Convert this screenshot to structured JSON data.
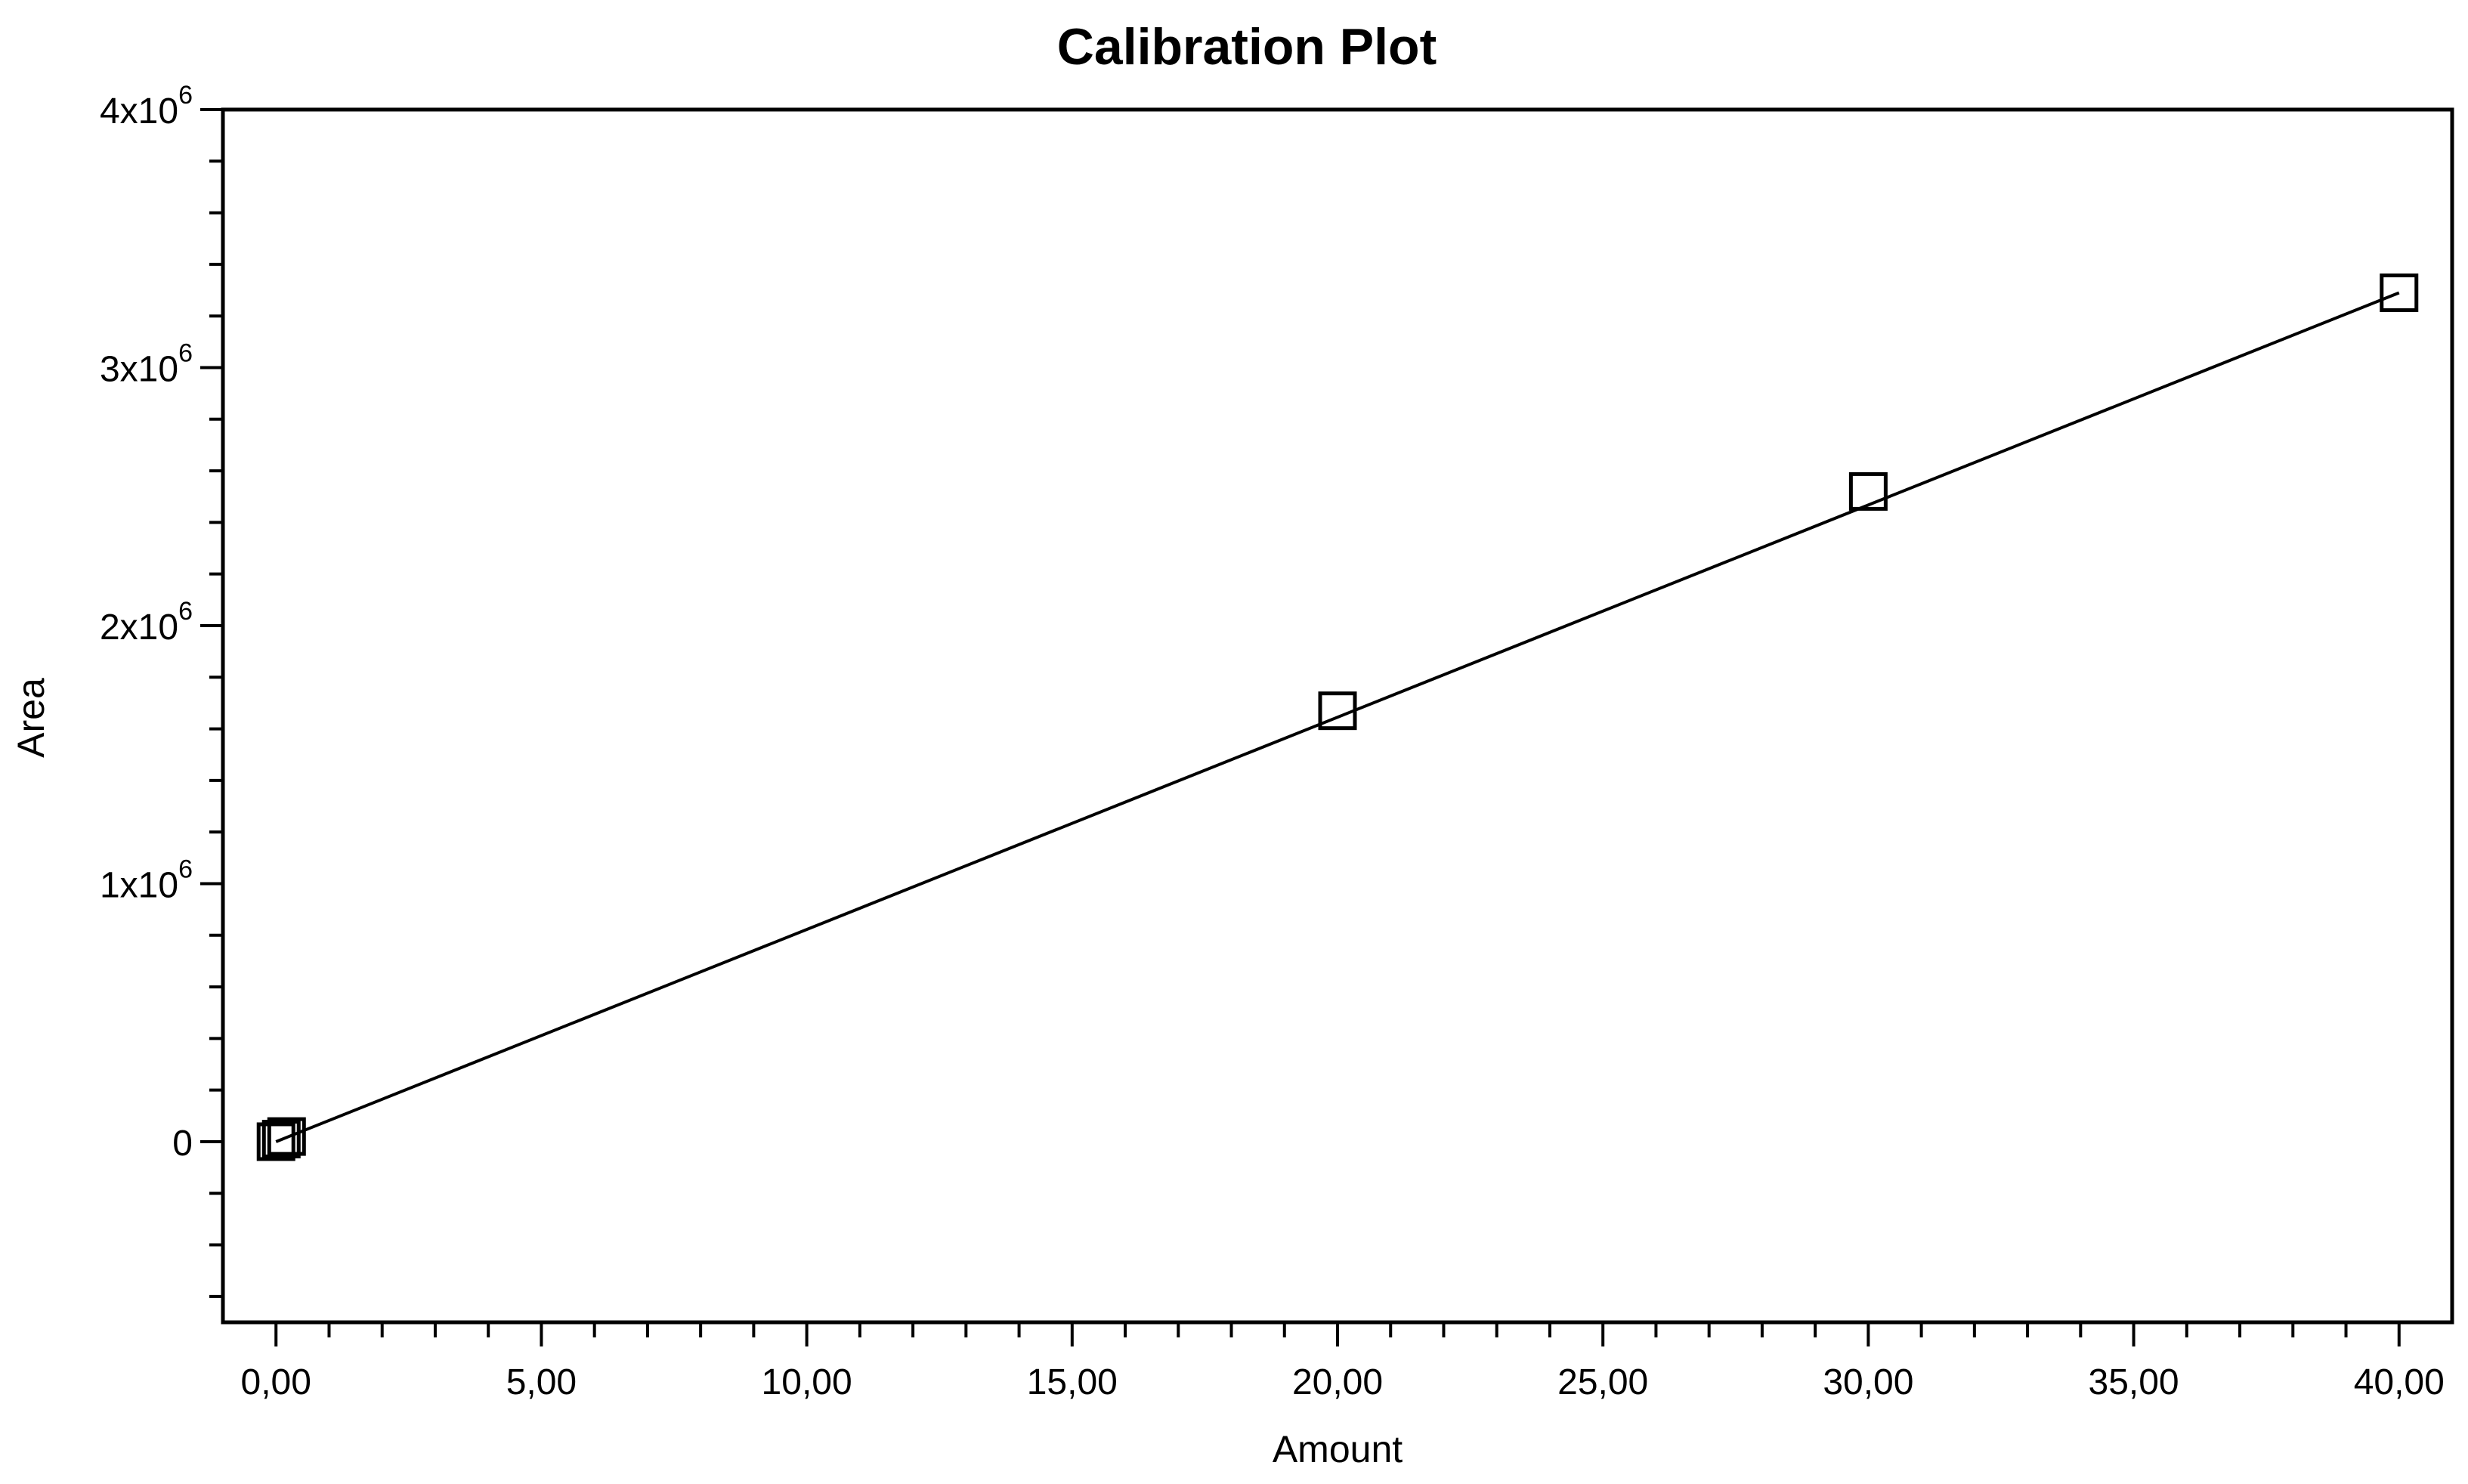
{
  "chart_data": {
    "type": "scatter",
    "title": "Calibration Plot",
    "xlabel": "Amount",
    "ylabel": "Area",
    "xlim": [
      -1.0,
      41.0
    ],
    "ylim": [
      -700000,
      4000000
    ],
    "x_ticks": [
      {
        "value": 0,
        "label": "0,00"
      },
      {
        "value": 5,
        "label": "5,00"
      },
      {
        "value": 10,
        "label": "10,00"
      },
      {
        "value": 15,
        "label": "15,00"
      },
      {
        "value": 20,
        "label": "20,00"
      },
      {
        "value": 25,
        "label": "25,00"
      },
      {
        "value": 30,
        "label": "30,00"
      },
      {
        "value": 35,
        "label": "35,00"
      },
      {
        "value": 40,
        "label": "40,00"
      }
    ],
    "y_ticks": [
      {
        "value": 0,
        "label": "0",
        "exp": ""
      },
      {
        "value": 1000000,
        "label": "1x10",
        "exp": "6"
      },
      {
        "value": 2000000,
        "label": "2x10",
        "exp": "6"
      },
      {
        "value": 3000000,
        "label": "3x10",
        "exp": "6"
      },
      {
        "value": 4000000,
        "label": "4x10",
        "exp": "6"
      }
    ],
    "series": [
      {
        "marker": "open-square",
        "points": [
          {
            "x": 0.0,
            "y": 0
          },
          {
            "x": 0.1,
            "y": 10000
          },
          {
            "x": 0.2,
            "y": 20000
          },
          {
            "x": 20.0,
            "y": 1670000
          },
          {
            "x": 30.0,
            "y": 2520000
          },
          {
            "x": 40.0,
            "y": 3290000
          }
        ]
      }
    ],
    "fit_line": {
      "from": {
        "x": 0.0,
        "y": 0
      },
      "to": {
        "x": 40.0,
        "y": 3290000
      }
    },
    "grid": false,
    "legend": "none",
    "colors": {
      "line": "#000000",
      "marker": "#000000",
      "background": "#ffffff"
    }
  }
}
